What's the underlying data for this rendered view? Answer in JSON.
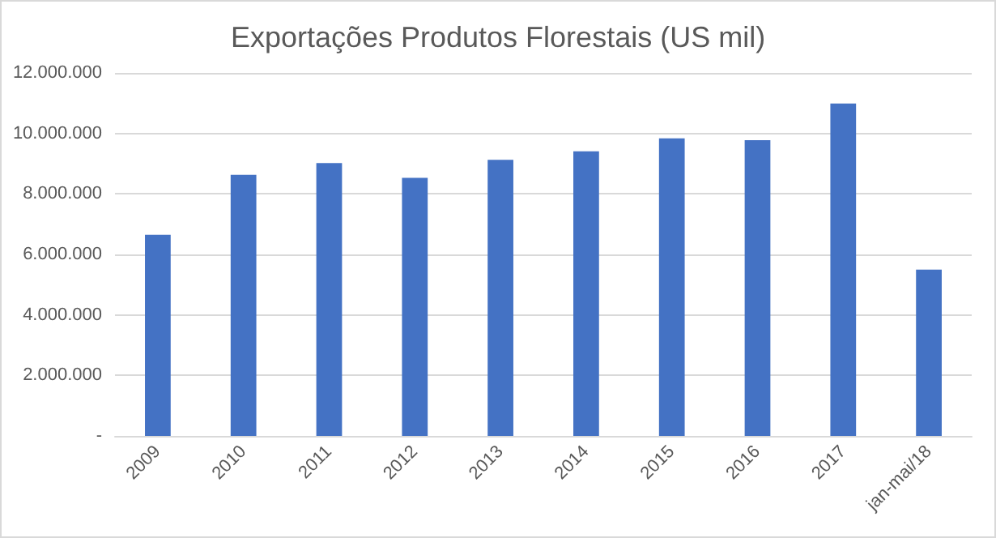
{
  "chart_data": {
    "type": "bar",
    "title": "Exportações Produtos Florestais (US mil)",
    "categories": [
      "2009",
      "2010",
      "2011",
      "2012",
      "2013",
      "2014",
      "2015",
      "2016",
      "2017",
      "jan-mai/18"
    ],
    "values": [
      6650000,
      8630000,
      9020000,
      8530000,
      9130000,
      9410000,
      9840000,
      9780000,
      10990000,
      5500000
    ],
    "color": "#4472c4",
    "ylim": [
      0,
      12000000
    ],
    "yticks": [
      {
        "value": 0,
        "label": "-"
      },
      {
        "value": 2000000,
        "label": "2.000.000"
      },
      {
        "value": 4000000,
        "label": "4.000.000"
      },
      {
        "value": 6000000,
        "label": "6.000.000"
      },
      {
        "value": 8000000,
        "label": "8.000.000"
      },
      {
        "value": 10000000,
        "label": "10.000.000"
      },
      {
        "value": 12000000,
        "label": "12.000.000"
      }
    ],
    "grid": "y"
  }
}
